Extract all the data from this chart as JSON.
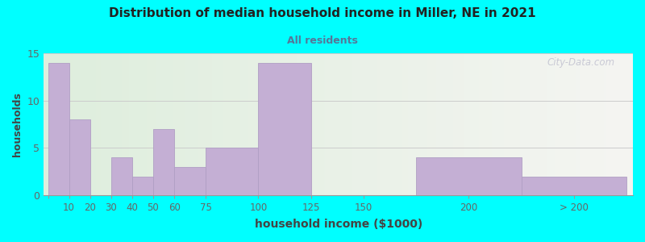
{
  "title": "Distribution of median household income in Miller, NE in 2021",
  "subtitle": "All residents",
  "xlabel": "household income ($1000)",
  "ylabel": "households",
  "background_outer": "#00FFFF",
  "background_inner_left": "#deeedd",
  "background_inner_right": "#f0f0ee",
  "bar_color": "#c4afd4",
  "bar_edge_color": "#b09fc4",
  "title_color": "#222222",
  "subtitle_color": "#557799",
  "axis_label_color": "#444444",
  "tick_label_color": "#666666",
  "watermark_text": "City-Data.com",
  "categories": [
    "10",
    "20",
    "30",
    "40",
    "50",
    "60",
    "75",
    "100",
    "125",
    "150",
    "200",
    "> 200"
  ],
  "values": [
    14,
    8,
    0,
    4,
    2,
    7,
    3,
    5,
    14,
    0,
    4,
    2
  ],
  "bar_left_edges": [
    0,
    10,
    20,
    30,
    40,
    50,
    60,
    75,
    100,
    125,
    175,
    225
  ],
  "bar_right_edges": [
    10,
    20,
    30,
    40,
    50,
    60,
    75,
    100,
    125,
    175,
    225,
    275
  ],
  "xtick_positions": [
    0,
    10,
    20,
    30,
    40,
    50,
    60,
    75,
    100,
    125,
    150,
    200,
    250
  ],
  "xtick_labels": [
    "",
    "10",
    "20",
    "30",
    "40",
    "50",
    "60",
    "75",
    "100",
    "125",
    "150",
    "200",
    "> 200"
  ],
  "xlim": [
    -2,
    278
  ],
  "ylim": [
    0,
    15
  ],
  "yticks": [
    0,
    5,
    10,
    15
  ],
  "grid_color": "#cccccc",
  "figsize": [
    8.0,
    3.0
  ],
  "dpi": 100
}
